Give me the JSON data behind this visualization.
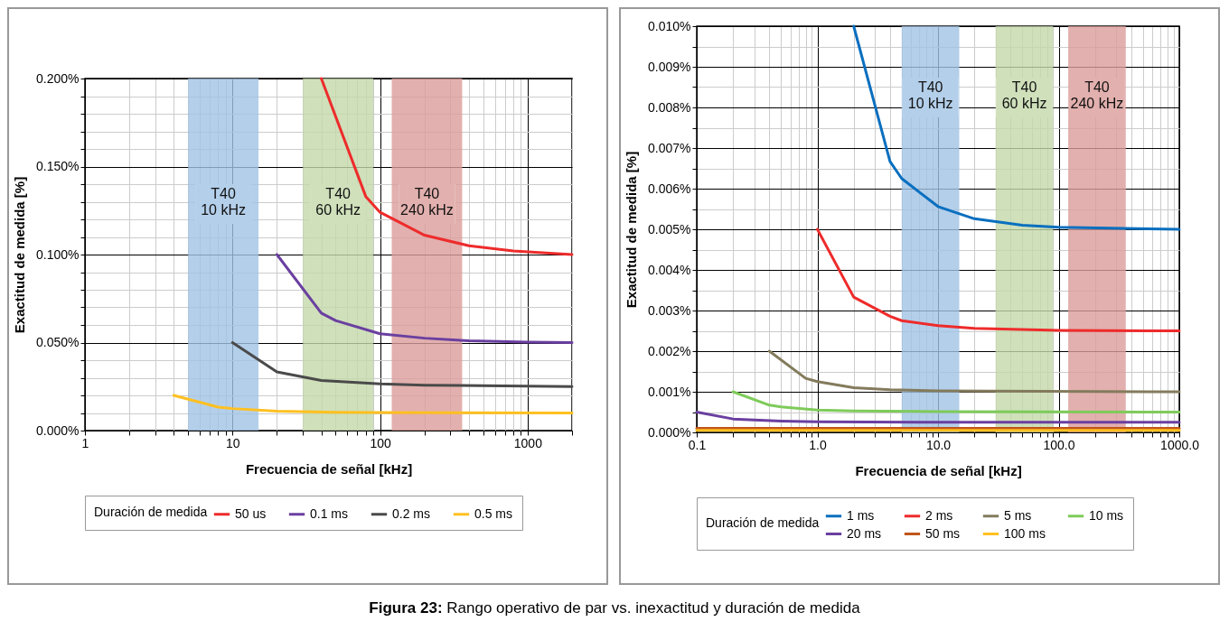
{
  "chart_data": [
    {
      "type": "line",
      "xlabel": "Frecuencia de señal [kHz]",
      "ylabel": "Exactitud de medida [%]",
      "legend_title": "Duración de medida",
      "legend": "bottom",
      "grid": true,
      "log": "x",
      "line_style": "solid",
      "marker": "none",
      "xlim": [
        1,
        2000
      ],
      "ylim": [
        0,
        0.2
      ],
      "xticks": [
        1,
        {
          "value": 2,
          "label": null
        },
        {
          "value": 3,
          "label": null
        },
        {
          "value": 4,
          "label": null
        },
        {
          "value": 5,
          "label": null
        },
        {
          "value": 6,
          "label": null
        },
        {
          "value": 7,
          "label": null
        },
        {
          "value": 8,
          "label": null
        },
        {
          "value": 9,
          "label": null
        },
        10,
        {
          "value": 20,
          "label": null
        },
        {
          "value": 30,
          "label": null
        },
        {
          "value": 40,
          "label": null
        },
        {
          "value": 50,
          "label": null
        },
        {
          "value": 60,
          "label": null
        },
        {
          "value": 70,
          "label": null
        },
        {
          "value": 80,
          "label": null
        },
        {
          "value": 90,
          "label": null
        },
        100,
        {
          "value": 200,
          "label": null
        },
        {
          "value": 300,
          "label": null
        },
        {
          "value": 400,
          "label": null
        },
        {
          "value": 500,
          "label": null
        },
        {
          "value": 600,
          "label": null
        },
        {
          "value": 700,
          "label": null
        },
        {
          "value": 800,
          "label": null
        },
        {
          "value": 900,
          "label": null
        },
        1000,
        {
          "value": 2000,
          "label": null
        }
      ],
      "yticks": [
        {
          "value": 0,
          "label": "0.000%"
        },
        {
          "value": 0.01,
          "label": null
        },
        {
          "value": 0.02,
          "label": null
        },
        {
          "value": 0.03,
          "label": null
        },
        {
          "value": 0.04,
          "label": null
        },
        {
          "value": 0.05,
          "label": "0.050%"
        },
        {
          "value": 0.06,
          "label": null
        },
        {
          "value": 0.07,
          "label": null
        },
        {
          "value": 0.08,
          "label": null
        },
        {
          "value": 0.09,
          "label": null
        },
        {
          "value": 0.1,
          "label": "0.100%"
        },
        {
          "value": 0.11,
          "label": null
        },
        {
          "value": 0.12,
          "label": null
        },
        {
          "value": 0.13,
          "label": null
        },
        {
          "value": 0.14,
          "label": null
        },
        {
          "value": 0.15,
          "label": "0.150%"
        },
        {
          "value": 0.16,
          "label": null
        },
        {
          "value": 0.17,
          "label": null
        },
        {
          "value": 0.18,
          "label": null
        },
        {
          "value": 0.19,
          "label": null
        },
        {
          "value": 0.2,
          "label": "0.200%"
        }
      ],
      "bands": [
        {
          "axis": "x",
          "from": 5,
          "to": 15,
          "label": "T40\n10 kHz",
          "color": "#a1c3e5"
        },
        {
          "axis": "x",
          "from": 30,
          "to": 90,
          "label": "T40\n60 kHz",
          "color": "#c3d8aa"
        },
        {
          "axis": "x",
          "from": 120,
          "to": 360,
          "label": "T40\n240 kHz",
          "color": "#db9c9a"
        }
      ],
      "series": [
        {
          "name": "50 us",
          "color": "#ee2b2b",
          "x": [
            40,
            80,
            100,
            200,
            400,
            800,
            2000
          ],
          "values": [
            0.2,
            0.133,
            0.124,
            0.111,
            0.105,
            0.102,
            0.1
          ]
        },
        {
          "name": "0.1 ms",
          "color": "#6a3fa0",
          "x": [
            20,
            40,
            50,
            100,
            200,
            400,
            1000,
            2000
          ],
          "values": [
            0.1,
            0.0667,
            0.0625,
            0.055,
            0.0525,
            0.051,
            0.0502,
            0.05
          ]
        },
        {
          "name": "0.2 ms",
          "color": "#4a4a4a",
          "x": [
            10,
            20,
            40,
            100,
            200,
            2000
          ],
          "values": [
            0.05,
            0.0333,
            0.0285,
            0.0265,
            0.0258,
            0.025
          ]
        },
        {
          "name": "0.5 ms",
          "color": "#ffc020",
          "x": [
            4,
            8,
            10,
            20,
            50,
            100,
            2000
          ],
          "values": [
            0.02,
            0.0133,
            0.0125,
            0.011,
            0.0104,
            0.0102,
            0.01
          ]
        }
      ],
      "annotations": [
        "Figura 23: Rango operativo de par vs. inexactitud y duración de medida"
      ]
    },
    {
      "type": "line",
      "xlabel": "Frecuencia de señal [kHz]",
      "ylabel": "Exactitud de medida [%]",
      "legend_title": "Duración de medida",
      "legend": "bottom",
      "grid": true,
      "log": "x",
      "line_style": "solid",
      "marker": "none",
      "xlim": [
        0.1,
        1000
      ],
      "ylim": [
        0,
        0.01
      ],
      "xticks": [
        0.1,
        {
          "value": 0.2,
          "label": null
        },
        {
          "value": 0.3,
          "label": null
        },
        {
          "value": 0.4,
          "label": null
        },
        {
          "value": 0.5,
          "label": null
        },
        {
          "value": 0.6,
          "label": null
        },
        {
          "value": 0.7,
          "label": null
        },
        {
          "value": 0.8,
          "label": null
        },
        {
          "value": 0.9,
          "label": null
        },
        {
          "value": 1,
          "label": "1.0"
        },
        {
          "value": 2,
          "label": null
        },
        {
          "value": 3,
          "label": null
        },
        {
          "value": 4,
          "label": null
        },
        {
          "value": 5,
          "label": null
        },
        {
          "value": 6,
          "label": null
        },
        {
          "value": 7,
          "label": null
        },
        {
          "value": 8,
          "label": null
        },
        {
          "value": 9,
          "label": null
        },
        {
          "value": 10,
          "label": "10.0"
        },
        {
          "value": 20,
          "label": null
        },
        {
          "value": 30,
          "label": null
        },
        {
          "value": 40,
          "label": null
        },
        {
          "value": 50,
          "label": null
        },
        {
          "value": 60,
          "label": null
        },
        {
          "value": 70,
          "label": null
        },
        {
          "value": 80,
          "label": null
        },
        {
          "value": 90,
          "label": null
        },
        {
          "value": 100,
          "label": "100.0"
        },
        {
          "value": 200,
          "label": null
        },
        {
          "value": 300,
          "label": null
        },
        {
          "value": 400,
          "label": null
        },
        {
          "value": 500,
          "label": null
        },
        {
          "value": 600,
          "label": null
        },
        {
          "value": 700,
          "label": null
        },
        {
          "value": 800,
          "label": null
        },
        {
          "value": 900,
          "label": null
        },
        {
          "value": 1000,
          "label": "1000.0"
        }
      ],
      "yticks": [
        {
          "value": 0,
          "label": "0.000%"
        },
        {
          "value": 0.0005,
          "label": null
        },
        {
          "value": 0.001,
          "label": "0.001%"
        },
        {
          "value": 0.0015,
          "label": null
        },
        {
          "value": 0.002,
          "label": "0.002%"
        },
        {
          "value": 0.0025,
          "label": null
        },
        {
          "value": 0.003,
          "label": "0.003%"
        },
        {
          "value": 0.0035,
          "label": null
        },
        {
          "value": 0.004,
          "label": "0.004%"
        },
        {
          "value": 0.0045,
          "label": null
        },
        {
          "value": 0.005,
          "label": "0.005%"
        },
        {
          "value": 0.0055,
          "label": null
        },
        {
          "value": 0.006,
          "label": "0.006%"
        },
        {
          "value": 0.0065,
          "label": null
        },
        {
          "value": 0.007,
          "label": "0.007%"
        },
        {
          "value": 0.0075,
          "label": null
        },
        {
          "value": 0.008,
          "label": "0.008%"
        },
        {
          "value": 0.0085,
          "label": null
        },
        {
          "value": 0.009,
          "label": "0.009%"
        },
        {
          "value": 0.0095,
          "label": null
        },
        {
          "value": 0.01,
          "label": "0.010%"
        }
      ],
      "bands": [
        {
          "axis": "x",
          "from": 5,
          "to": 15,
          "label": "T40\n10 kHz",
          "color": "#a1c3e5"
        },
        {
          "axis": "x",
          "from": 30,
          "to": 90,
          "label": "T40\n60 kHz",
          "color": "#c3d8aa"
        },
        {
          "axis": "x",
          "from": 120,
          "to": 360,
          "label": "T40\n240 kHz",
          "color": "#db9c9a"
        }
      ],
      "series": [
        {
          "name": "1 ms",
          "color": "#0a6fbf",
          "x": [
            2,
            4,
            5,
            10,
            20,
            50,
            100,
            1000
          ],
          "values": [
            0.01,
            0.00667,
            0.00625,
            0.00556,
            0.00526,
            0.0051,
            0.00505,
            0.005
          ]
        },
        {
          "name": "2 ms",
          "color": "#ee2b2b",
          "x": [
            1,
            2,
            4,
            5,
            10,
            20,
            100,
            1000
          ],
          "values": [
            0.005,
            0.00333,
            0.00286,
            0.00275,
            0.00263,
            0.00256,
            0.00251,
            0.0025
          ]
        },
        {
          "name": "5 ms",
          "color": "#837b5c",
          "x": [
            0.4,
            0.8,
            1,
            2,
            4,
            10,
            1000
          ],
          "values": [
            0.002,
            0.00133,
            0.00125,
            0.0011,
            0.00105,
            0.00102,
            0.001
          ]
        },
        {
          "name": "10 ms",
          "color": "#7ecb5a",
          "x": [
            0.2,
            0.4,
            0.5,
            1,
            2,
            10,
            1000
          ],
          "values": [
            0.001,
            0.00067,
            0.00063,
            0.00055,
            0.00053,
            0.00051,
            0.0005
          ]
        },
        {
          "name": "20 ms",
          "color": "#6a3fa0",
          "x": [
            0.1,
            0.2,
            0.5,
            1,
            10,
            1000
          ],
          "values": [
            0.0005,
            0.00033,
            0.00028,
            0.00026,
            0.00025,
            0.00025
          ]
        },
        {
          "name": "50 ms",
          "color": "#c0561a",
          "x": [
            0.1,
            1000
          ],
          "values": [
            0.0001,
            0.0001
          ]
        },
        {
          "name": "100 ms",
          "color": "#ffc020",
          "x": [
            0.1,
            1000
          ],
          "values": [
            5e-05,
            5e-05
          ]
        }
      ]
    }
  ]
}
